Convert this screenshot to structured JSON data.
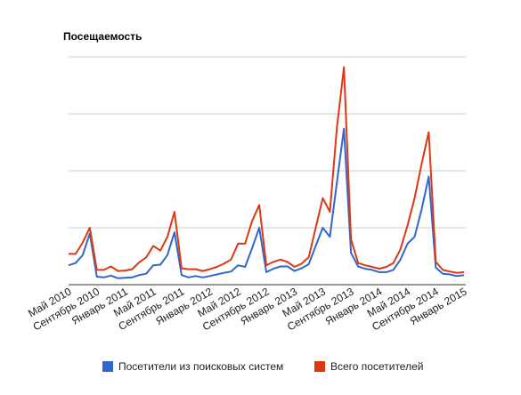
{
  "chart_data": {
    "type": "line",
    "title": "Посещаемость",
    "xlabel": "",
    "ylabel": "",
    "ylim": [
      0,
      10
    ],
    "grid": true,
    "legend_position": "bottom",
    "x_tick_labels": [
      {
        "index": 0,
        "label": "Май 2010"
      },
      {
        "index": 4,
        "label": "Сентябрь 2010"
      },
      {
        "index": 8,
        "label": "Январь 2011"
      },
      {
        "index": 12,
        "label": "Май 2011"
      },
      {
        "index": 16,
        "label": "Сентябрь 2011"
      },
      {
        "index": 20,
        "label": "Январь 2012"
      },
      {
        "index": 24,
        "label": "Май 2012"
      },
      {
        "index": 28,
        "label": "Сентябрь 2012"
      },
      {
        "index": 32,
        "label": "Январь 2013"
      },
      {
        "index": 36,
        "label": "Май 2013"
      },
      {
        "index": 40,
        "label": "Сентябрь 2013"
      },
      {
        "index": 44,
        "label": "Январь 2014"
      },
      {
        "index": 48,
        "label": "Май 2014"
      },
      {
        "index": 52,
        "label": "Сентябрь 2014"
      },
      {
        "index": 56,
        "label": "Январь 2015"
      }
    ],
    "series": [
      {
        "name": "Посетители из поисковых систем",
        "color": "#3366cc",
        "values": [
          0.85,
          0.95,
          1.3,
          2.25,
          0.35,
          0.32,
          0.4,
          0.28,
          0.3,
          0.32,
          0.42,
          0.48,
          0.85,
          0.88,
          1.3,
          2.3,
          0.42,
          0.32,
          0.38,
          0.32,
          0.38,
          0.45,
          0.52,
          0.58,
          0.85,
          0.78,
          1.6,
          2.5,
          0.55,
          0.7,
          0.8,
          0.8,
          0.6,
          0.72,
          0.9,
          1.7,
          2.5,
          2.1,
          4.5,
          6.85,
          1.4,
          0.8,
          0.7,
          0.65,
          0.55,
          0.55,
          0.65,
          1.1,
          1.8,
          2.1,
          3.3,
          4.75,
          0.75,
          0.48,
          0.45,
          0.38,
          0.42
        ]
      },
      {
        "name": "Всего посетителей",
        "color": "#dc3912",
        "values": [
          1.35,
          1.35,
          1.85,
          2.5,
          0.65,
          0.65,
          0.8,
          0.6,
          0.62,
          0.68,
          0.98,
          1.2,
          1.7,
          1.5,
          2.1,
          3.2,
          0.72,
          0.68,
          0.68,
          0.6,
          0.68,
          0.78,
          0.92,
          1.1,
          1.8,
          1.8,
          2.8,
          3.5,
          0.85,
          1.0,
          1.1,
          1.0,
          0.78,
          0.92,
          1.2,
          2.5,
          3.8,
          3.2,
          6.9,
          9.55,
          2.0,
          0.95,
          0.85,
          0.78,
          0.7,
          0.78,
          0.95,
          1.55,
          2.6,
          3.8,
          5.3,
          6.7,
          1.0,
          0.65,
          0.58,
          0.52,
          0.55
        ]
      }
    ]
  }
}
